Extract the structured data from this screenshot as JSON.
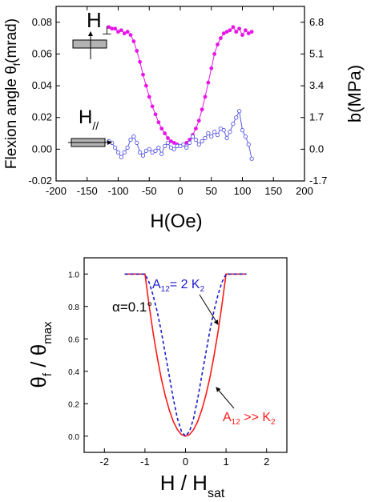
{
  "chart_data": [
    {
      "type": "scatter",
      "title": "",
      "xlabel": "H(Oe)",
      "ylabel_left": {
        "main": "Flexion angle θ",
        "sub": "f",
        "rest": "(mrad)"
      },
      "ylabel_right": "b(MPa)",
      "xlim": [
        -200,
        200
      ],
      "ylim": [
        -0.02,
        0.09
      ],
      "xticks": [
        "-200",
        "-150",
        "-100",
        "-50",
        "0",
        "50",
        "100",
        "150",
        "200"
      ],
      "yticks_left": [
        "-0.02",
        "0.00",
        "0.02",
        "0.04",
        "0.06",
        "0.08"
      ],
      "yticks_right": [
        "-1.7",
        "0.0",
        "1.7",
        "3.4",
        "5.1",
        "6.8"
      ],
      "annotations": {
        "perp": {
          "main": "H",
          "sub": "⊥"
        },
        "par": {
          "main": "H",
          "sub": "//"
        }
      },
      "colors": {
        "perp": "#e815e8",
        "par": "#5a5ae6"
      },
      "series": [
        {
          "marker": "filled-circle",
          "x": [
            -115,
            -110,
            -105,
            -100,
            -95,
            -90,
            -85,
            -80,
            -75,
            -70,
            -65,
            -60,
            -55,
            -50,
            -45,
            -40,
            -35,
            -30,
            -25,
            -20,
            -15,
            -10,
            -5,
            0,
            5,
            10,
            15,
            20,
            25,
            30,
            35,
            40,
            45,
            50,
            55,
            60,
            65,
            70,
            75,
            80,
            85,
            90,
            95,
            100,
            105,
            110,
            115
          ],
          "y": [
            0.077,
            0.076,
            0.076,
            0.074,
            0.075,
            0.073,
            0.074,
            0.072,
            0.068,
            0.062,
            0.055,
            0.047,
            0.04,
            0.033,
            0.027,
            0.022,
            0.017,
            0.013,
            0.01,
            0.007,
            0.005,
            0.004,
            0.003,
            0.002,
            0.003,
            0.004,
            0.006,
            0.009,
            0.013,
            0.018,
            0.025,
            0.033,
            0.042,
            0.051,
            0.06,
            0.066,
            0.07,
            0.073,
            0.074,
            0.075,
            0.077,
            0.074,
            0.076,
            0.072,
            0.075,
            0.073,
            0.074
          ]
        },
        {
          "marker": "open-circle",
          "x": [
            -115,
            -110,
            -105,
            -100,
            -95,
            -90,
            -85,
            -80,
            -75,
            -70,
            -65,
            -60,
            -55,
            -50,
            -45,
            -40,
            -35,
            -30,
            -25,
            -20,
            -15,
            -10,
            -5,
            0,
            5,
            10,
            15,
            20,
            25,
            30,
            35,
            40,
            45,
            50,
            55,
            60,
            65,
            70,
            75,
            80,
            85,
            90,
            95,
            100,
            105,
            110,
            115
          ],
          "y": [
            0.005,
            0.004,
            0.001,
            -0.002,
            -0.005,
            -0.002,
            0.001,
            0.006,
            0.008,
            0.004,
            -0.002,
            -0.004,
            -0.001,
            0.0,
            -0.002,
            -0.001,
            0.001,
            -0.003,
            0.002,
            0.004,
            0.001,
            0.0,
            0.002,
            0.002,
            0.003,
            0.001,
            0.004,
            0.008,
            0.006,
            0.003,
            0.005,
            0.007,
            0.01,
            0.008,
            0.011,
            0.009,
            0.013,
            0.012,
            0.007,
            0.011,
            0.016,
            0.02,
            0.024,
            0.012,
            0.008,
            0.003,
            -0.006
          ]
        }
      ]
    },
    {
      "type": "line",
      "title": "",
      "xlabel": {
        "main": "H / H",
        "sub": "sat"
      },
      "ylabel": {
        "a": "θ",
        "a_sub": "f",
        "sep": " / ",
        "b": "θ",
        "b_sub": "max"
      },
      "xlim": [
        -2.5,
        2.5
      ],
      "ylim": [
        -0.1,
        1.1
      ],
      "xticks": [
        "-2",
        "-1",
        "0",
        "1",
        "2"
      ],
      "yticks": [
        "0.0",
        "0.2",
        "0.4",
        "0.6",
        "0.8",
        "1.0"
      ],
      "annotations": {
        "alpha": "α=0.1°",
        "dashed_label": {
          "a": "A",
          "a_sub": "12",
          "rest": "= 2 K",
          "k_sub": "2"
        },
        "solid_label": {
          "a": "A",
          "a_sub": "12",
          "rest": " >> K",
          "k_sub": "2"
        }
      },
      "colors": {
        "solid": "#ff1a1a",
        "dashed": "#1a1acc"
      },
      "series": [
        {
          "style": "solid",
          "x": [
            -1.5,
            -1.0,
            -0.9,
            -0.8,
            -0.7,
            -0.6,
            -0.5,
            -0.4,
            -0.3,
            -0.2,
            -0.1,
            0.0,
            0.1,
            0.2,
            0.3,
            0.4,
            0.5,
            0.6,
            0.7,
            0.8,
            0.9,
            1.0,
            1.5
          ],
          "y": [
            1.0,
            1.0,
            0.81,
            0.64,
            0.49,
            0.36,
            0.25,
            0.16,
            0.09,
            0.04,
            0.01,
            0.0,
            0.01,
            0.04,
            0.09,
            0.16,
            0.25,
            0.36,
            0.49,
            0.64,
            0.81,
            1.0,
            1.0
          ]
        },
        {
          "style": "dashed",
          "x": [
            -1.5,
            -1.0,
            -0.9,
            -0.8,
            -0.7,
            -0.6,
            -0.5,
            -0.4,
            -0.3,
            -0.2,
            -0.1,
            0.0,
            0.1,
            0.2,
            0.3,
            0.4,
            0.5,
            0.6,
            0.7,
            0.8,
            0.9,
            1.0,
            1.5
          ],
          "y": [
            1.0,
            1.0,
            0.95,
            0.87,
            0.77,
            0.65,
            0.51,
            0.37,
            0.23,
            0.11,
            0.03,
            0.0,
            0.03,
            0.11,
            0.23,
            0.37,
            0.51,
            0.65,
            0.77,
            0.87,
            0.95,
            1.0,
            1.0
          ]
        }
      ]
    }
  ]
}
